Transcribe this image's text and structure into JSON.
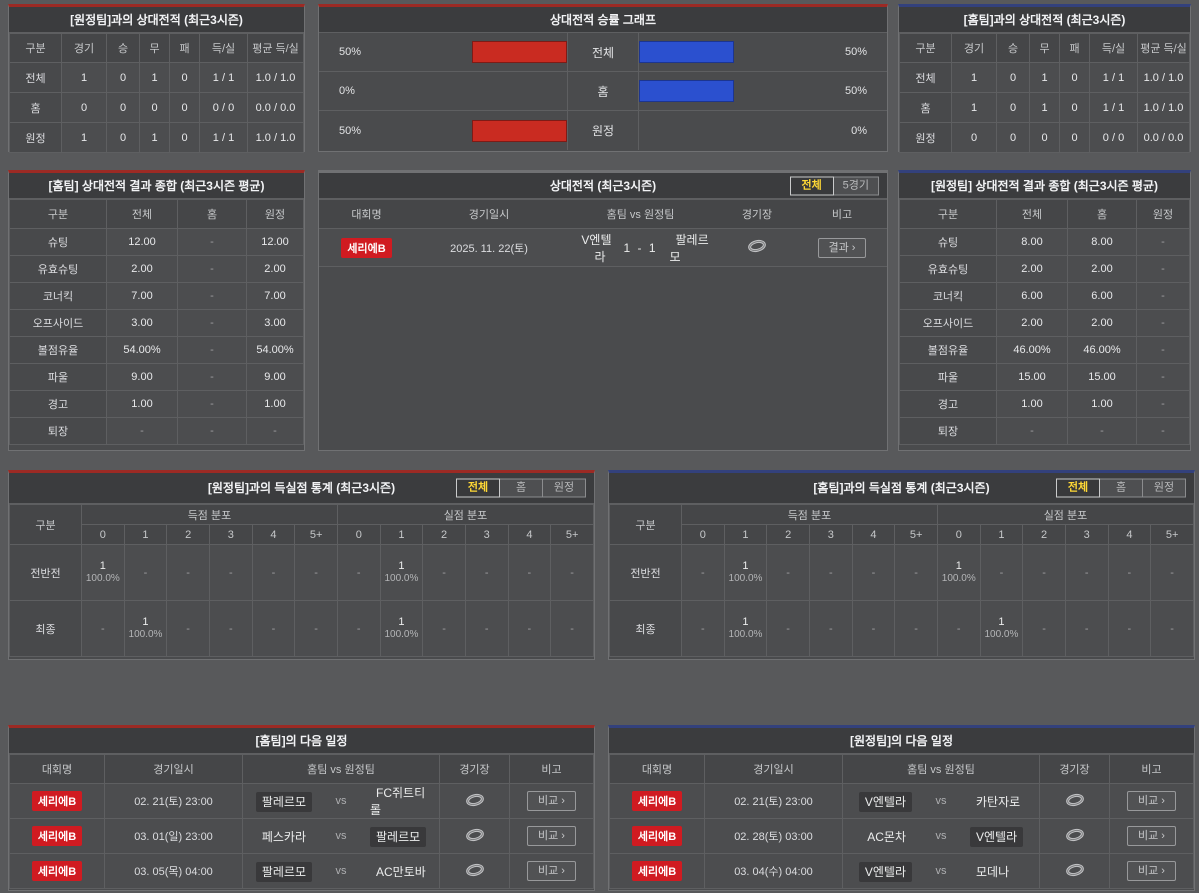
{
  "colors": {
    "page_bg": "#58595b",
    "panel_bg": "#4a4b4d",
    "title_bg": "#3b3c3e",
    "cell_border": "#5e5f61",
    "accent_home": "#9c2a24",
    "accent_away": "#33417c",
    "bar_red": "#c92b21",
    "bar_blue": "#2b50cf",
    "badge_red": "#d01b21",
    "tab_active": "#ffd935"
  },
  "record_vs_away": {
    "title": "[원정팀]과의 상대전적 (최근3시즌)",
    "headers": [
      "구분",
      "경기",
      "승",
      "무",
      "패",
      "득/실",
      "평균 득/실"
    ],
    "rows": [
      {
        "label": "전체",
        "cells": [
          "1",
          "0",
          "1",
          "0",
          "1 / 1",
          "1.0 / 1.0"
        ]
      },
      {
        "label": "홈",
        "cells": [
          "0",
          "0",
          "0",
          "0",
          "0 / 0",
          "0.0 / 0.0"
        ]
      },
      {
        "label": "원정",
        "cells": [
          "1",
          "0",
          "1",
          "0",
          "1 / 1",
          "1.0 / 1.0"
        ]
      }
    ]
  },
  "winrate_chart": {
    "title": "상대전적 승률 그래프",
    "chart_data": {
      "type": "bar",
      "title": "상대전적 승률 그래프",
      "categories": [
        "전체",
        "홈",
        "원정"
      ],
      "series": [
        {
          "name": "home-team-winrate-red-left",
          "values": [
            50,
            0,
            50
          ]
        },
        {
          "name": "away-team-winrate-blue-right",
          "values": [
            50,
            50,
            0
          ]
        }
      ],
      "xlim": [
        0,
        100
      ],
      "legend": "none",
      "rows": [
        {
          "label": "전체",
          "left": 50,
          "left_pct": "50%",
          "right": 50,
          "right_pct": "50%"
        },
        {
          "label": "홈",
          "left": 0,
          "left_pct": "0%",
          "right": 50,
          "right_pct": "50%"
        },
        {
          "label": "원정",
          "left": 50,
          "left_pct": "50%",
          "right": 0,
          "right_pct": "0%"
        }
      ]
    }
  },
  "record_vs_home": {
    "title": "[홈팀]과의 상대전적 (최근3시즌)",
    "headers": [
      "구분",
      "경기",
      "승",
      "무",
      "패",
      "득/실",
      "평균 득/실"
    ],
    "rows": [
      {
        "label": "전체",
        "cells": [
          "1",
          "0",
          "1",
          "0",
          "1 / 1",
          "1.0 / 1.0"
        ]
      },
      {
        "label": "홈",
        "cells": [
          "1",
          "0",
          "1",
          "0",
          "1 / 1",
          "1.0 / 1.0"
        ]
      },
      {
        "label": "원정",
        "cells": [
          "0",
          "0",
          "0",
          "0",
          "0 / 0",
          "0.0 / 0.0"
        ]
      }
    ]
  },
  "home_summary": {
    "title": "[홈팀] 상대전적 결과 종합 (최근3시즌 평균)",
    "headers": [
      "구분",
      "전체",
      "홈",
      "원정"
    ],
    "rows": [
      {
        "label": "슈팅",
        "cells": [
          "12.00",
          "-",
          "12.00"
        ]
      },
      {
        "label": "유효슈팅",
        "cells": [
          "2.00",
          "-",
          "2.00"
        ]
      },
      {
        "label": "코너킥",
        "cells": [
          "7.00",
          "-",
          "7.00"
        ]
      },
      {
        "label": "오프사이드",
        "cells": [
          "3.00",
          "-",
          "3.00"
        ]
      },
      {
        "label": "볼점유율",
        "cells": [
          "54.00%",
          "-",
          "54.00%"
        ]
      },
      {
        "label": "파울",
        "cells": [
          "9.00",
          "-",
          "9.00"
        ]
      },
      {
        "label": "경고",
        "cells": [
          "1.00",
          "-",
          "1.00"
        ]
      },
      {
        "label": "퇴장",
        "cells": [
          "-",
          "-",
          "-"
        ]
      }
    ]
  },
  "away_summary": {
    "title": "[원정팀] 상대전적 결과 종합 (최근3시즌 평균)",
    "headers": [
      "구분",
      "전체",
      "홈",
      "원정"
    ],
    "rows": [
      {
        "label": "슈팅",
        "cells": [
          "8.00",
          "8.00",
          "-"
        ]
      },
      {
        "label": "유효슈팅",
        "cells": [
          "2.00",
          "2.00",
          "-"
        ]
      },
      {
        "label": "코너킥",
        "cells": [
          "6.00",
          "6.00",
          "-"
        ]
      },
      {
        "label": "오프사이드",
        "cells": [
          "2.00",
          "2.00",
          "-"
        ]
      },
      {
        "label": "볼점유율",
        "cells": [
          "46.00%",
          "46.00%",
          "-"
        ]
      },
      {
        "label": "파울",
        "cells": [
          "15.00",
          "15.00",
          "-"
        ]
      },
      {
        "label": "경고",
        "cells": [
          "1.00",
          "1.00",
          "-"
        ]
      },
      {
        "label": "퇴장",
        "cells": [
          "-",
          "-",
          "-"
        ]
      }
    ]
  },
  "h2h": {
    "title": "상대전적 (최근3시즌)",
    "tabs": {
      "items": [
        "전체",
        "5경기"
      ],
      "active": 0
    },
    "headers": [
      "대회명",
      "경기일시",
      "홈팀  vs  원정팀",
      "경기장",
      "비고"
    ],
    "rows": [
      {
        "league": "세리에B",
        "date": "2025. 11. 22(토)",
        "home": "V엔텔라",
        "center": "1 - 1",
        "away": "팔레르모",
        "button": "결과"
      }
    ]
  },
  "goal_stats_left": {
    "title": "[원정팀]과의 득실점 통계 (최근3시즌)",
    "tabs": {
      "items": [
        "전체",
        "홈",
        "원정"
      ],
      "active": 0
    },
    "corner_label": "구분",
    "group_headers": [
      "득점 분포",
      "실점 분포"
    ],
    "score_cols": [
      "0",
      "1",
      "2",
      "3",
      "4",
      "5+"
    ],
    "rows": [
      {
        "label": "전반전",
        "goals": [
          {
            "count": "1",
            "pct": "100.0%"
          },
          "-",
          "-",
          "-",
          "-",
          "-"
        ],
        "conceded": [
          "-",
          {
            "count": "1",
            "pct": "100.0%"
          },
          "-",
          "-",
          "-",
          "-"
        ]
      },
      {
        "label": "최종",
        "goals": [
          "-",
          {
            "count": "1",
            "pct": "100.0%"
          },
          "-",
          "-",
          "-",
          "-"
        ],
        "conceded": [
          "-",
          {
            "count": "1",
            "pct": "100.0%"
          },
          "-",
          "-",
          "-",
          "-"
        ]
      }
    ]
  },
  "goal_stats_right": {
    "title": "[홈팀]과의 득실점 통계 (최근3시즌)",
    "tabs": {
      "items": [
        "전체",
        "홈",
        "원정"
      ],
      "active": 0
    },
    "corner_label": "구분",
    "group_headers": [
      "득점 분포",
      "실점 분포"
    ],
    "score_cols": [
      "0",
      "1",
      "2",
      "3",
      "4",
      "5+"
    ],
    "rows": [
      {
        "label": "전반전",
        "goals": [
          "-",
          {
            "count": "1",
            "pct": "100.0%"
          },
          "-",
          "-",
          "-",
          "-"
        ],
        "conceded": [
          {
            "count": "1",
            "pct": "100.0%"
          },
          "-",
          "-",
          "-",
          "-",
          "-"
        ]
      },
      {
        "label": "최종",
        "goals": [
          "-",
          {
            "count": "1",
            "pct": "100.0%"
          },
          "-",
          "-",
          "-",
          "-"
        ],
        "conceded": [
          "-",
          {
            "count": "1",
            "pct": "100.0%"
          },
          "-",
          "-",
          "-",
          "-"
        ]
      }
    ]
  },
  "schedule_home": {
    "title": "[홈팀]의 다음 일정",
    "headers": [
      "대회명",
      "경기일시",
      "홈팀  vs  원정팀",
      "경기장",
      "비고"
    ],
    "rows": [
      {
        "league": "세리에B",
        "date": "02. 21(토) 23:00",
        "home": "팔레르모",
        "home_hl": true,
        "center": "vs",
        "away": "FC쥐트티롤",
        "button": "비교"
      },
      {
        "league": "세리에B",
        "date": "03. 01(일) 23:00",
        "home": "페스카라",
        "center": "vs",
        "away": "팔레르모",
        "away_hl": true,
        "button": "비교"
      },
      {
        "league": "세리에B",
        "date": "03. 05(목) 04:00",
        "home": "팔레르모",
        "home_hl": true,
        "center": "vs",
        "away": "AC만토바",
        "button": "비교"
      }
    ]
  },
  "schedule_away": {
    "title": "[원정팀]의 다음 일정",
    "headers": [
      "대회명",
      "경기일시",
      "홈팀  vs  원정팀",
      "경기장",
      "비고"
    ],
    "rows": [
      {
        "league": "세리에B",
        "date": "02. 21(토) 23:00",
        "home": "V엔텔라",
        "home_hl": true,
        "center": "vs",
        "away": "카탄자로",
        "button": "비교"
      },
      {
        "league": "세리에B",
        "date": "02. 28(토) 03:00",
        "home": "AC몬차",
        "center": "vs",
        "away": "V엔텔라",
        "away_hl": true,
        "button": "비교"
      },
      {
        "league": "세리에B",
        "date": "03. 04(수) 04:00",
        "home": "V엔텔라",
        "home_hl": true,
        "center": "vs",
        "away": "모데나",
        "button": "비교"
      }
    ]
  }
}
